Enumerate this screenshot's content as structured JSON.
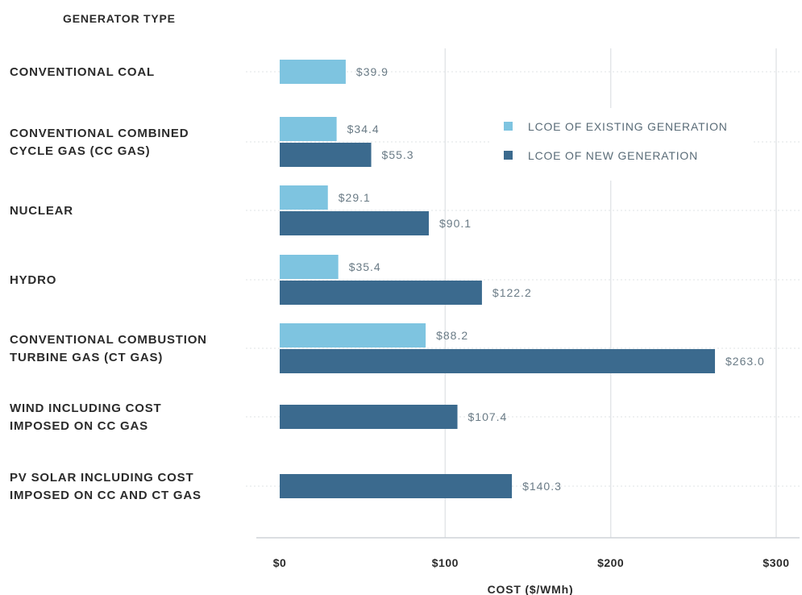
{
  "chart_data": {
    "type": "bar",
    "orientation": "horizontal",
    "category_header": "GENERATOR TYPE",
    "xlabel": "COST ($/WMh)",
    "xlim": [
      0,
      300
    ],
    "xticks": [
      0,
      100,
      200,
      300
    ],
    "xtick_labels": [
      "$0",
      "$100",
      "$200",
      "$300"
    ],
    "grid": true,
    "legend_position": "upper-right",
    "categories": [
      [
        "CONVENTIONAL COAL"
      ],
      [
        "CONVENTIONAL COMBINED",
        "CYCLE GAS (CC GAS)"
      ],
      [
        "NUCLEAR"
      ],
      [
        "HYDRO"
      ],
      [
        "CONVENTIONAL COMBUSTION",
        "TURBINE GAS (CT GAS)"
      ],
      [
        "WIND INCLUDING COST",
        "IMPOSED ON CC GAS"
      ],
      [
        "PV SOLAR INCLUDING COST",
        "IMPOSED ON CC AND CT GAS"
      ]
    ],
    "series": [
      {
        "name": "LCOE OF EXISTING GENERATION",
        "color": "#7ec4e0",
        "values": [
          39.9,
          34.4,
          29.1,
          35.4,
          88.2,
          null,
          null
        ],
        "labels": [
          "$39.9",
          "$34.4",
          "$29.1",
          "$35.4",
          "$88.2",
          null,
          null
        ]
      },
      {
        "name": "LCOE OF NEW GENERATION",
        "color": "#3b6a8e",
        "values": [
          null,
          55.3,
          90.1,
          122.2,
          263.0,
          107.4,
          140.3
        ],
        "labels": [
          null,
          "$55.3",
          "$90.1",
          "$122.2",
          "$263.0",
          "$107.4",
          "$140.3"
        ]
      }
    ]
  }
}
